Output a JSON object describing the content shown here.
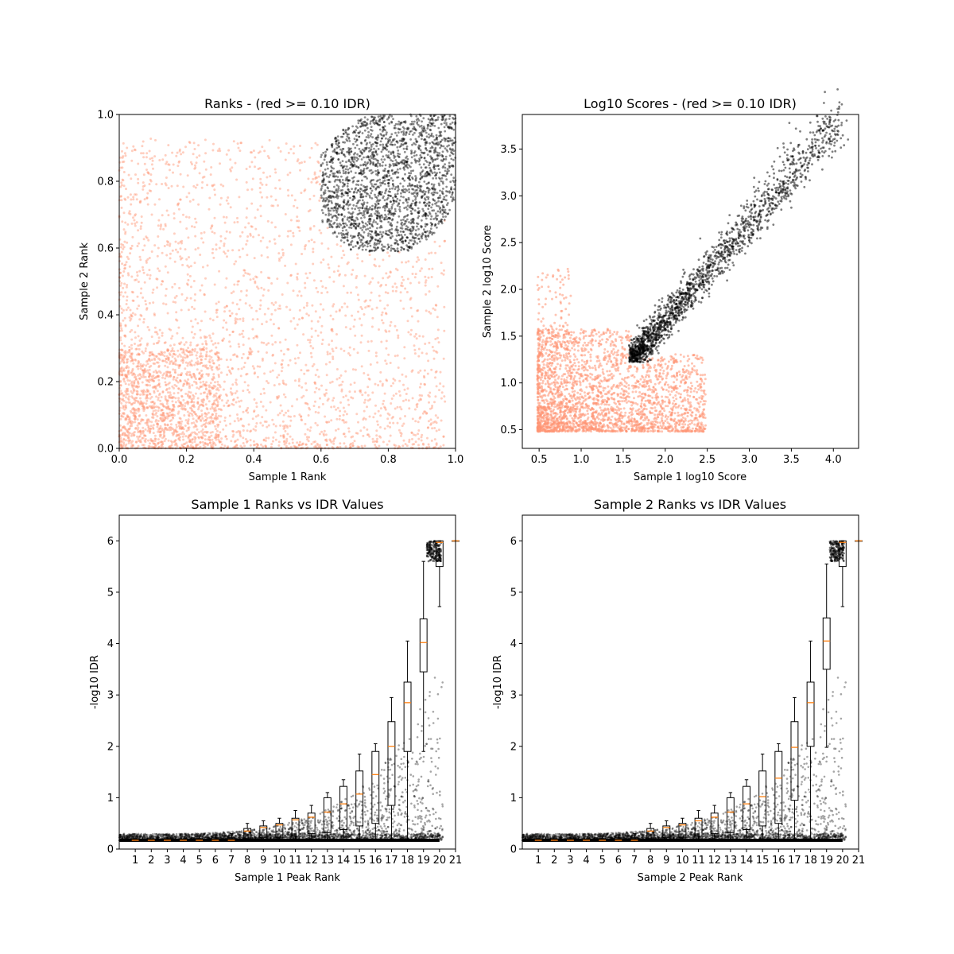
{
  "chart_data": [
    {
      "type": "scatter",
      "title": "Ranks - (red >= 0.10 IDR)",
      "xlabel": "Sample 1 Rank",
      "ylabel": "Sample 2 Rank",
      "xlim": [
        0,
        1
      ],
      "ylim": [
        0,
        1
      ],
      "xticks": [
        "0.0",
        "0.2",
        "0.4",
        "0.6",
        "0.8",
        "1.0"
      ],
      "yticks": [
        "0.0",
        "0.2",
        "0.4",
        "0.6",
        "0.8",
        "1.0"
      ],
      "grid": false,
      "series": [
        {
          "color": "#ff9473",
          "description": "IDR >= 0.10, spread across whole rank space, densest near origin",
          "sample_points": [
            [
              0.05,
              0.05
            ],
            [
              0.1,
              0.15
            ],
            [
              0.2,
              0.1
            ],
            [
              0.3,
              0.3
            ],
            [
              0.45,
              0.2
            ],
            [
              0.5,
              0.5
            ],
            [
              0.6,
              0.4
            ],
            [
              0.7,
              0.2
            ],
            [
              0.8,
              0.5
            ],
            [
              0.15,
              0.7
            ],
            [
              0.35,
              0.8
            ],
            [
              0.9,
              0.3
            ],
            [
              0.55,
              0.65
            ],
            [
              0.25,
              0.45
            ],
            [
              0.05,
              0.85
            ]
          ]
        },
        {
          "color": "#000000",
          "description": "IDR < 0.10, concentrated at high ranks (x 0.6-1.0, y 0.6-1.0)",
          "sample_points": [
            [
              0.62,
              0.75
            ],
            [
              0.7,
              0.65
            ],
            [
              0.75,
              0.85
            ],
            [
              0.8,
              0.72
            ],
            [
              0.85,
              0.9
            ],
            [
              0.9,
              0.8
            ],
            [
              0.95,
              0.95
            ],
            [
              0.98,
              0.99
            ],
            [
              0.68,
              0.88
            ],
            [
              0.88,
              0.62
            ]
          ]
        }
      ]
    },
    {
      "type": "scatter",
      "title": "Log10 Scores - (red >= 0.10 IDR)",
      "xlabel": "Sample 1 log10 Score",
      "ylabel": "Sample 2 log10 Score",
      "xlim": [
        0.3,
        4.3
      ],
      "ylim": [
        0.3,
        3.87
      ],
      "xticks": [
        "0.5",
        "1.0",
        "1.5",
        "2.0",
        "2.5",
        "3.0",
        "3.5",
        "4.0"
      ],
      "yticks": [
        "0.5",
        "1.0",
        "1.5",
        "2.0",
        "2.5",
        "3.0",
        "3.5"
      ],
      "grid": false,
      "series": [
        {
          "color": "#ff9473",
          "description": "IDR >= 0.10, dense block x 0.5-2.5, y 0.5-1.5",
          "sample_points": [
            [
              0.5,
              0.5
            ],
            [
              0.8,
              0.8
            ],
            [
              1.0,
              1.0
            ],
            [
              1.3,
              0.7
            ],
            [
              1.6,
              1.2
            ],
            [
              2.0,
              0.9
            ],
            [
              0.7,
              1.3
            ],
            [
              2.4,
              1.1
            ]
          ]
        },
        {
          "color": "#000000",
          "description": "IDR < 0.10, elongated diagonal cloud from (1.6,1.25) to (4.1,3.7)",
          "sample_points": [
            [
              1.6,
              1.3
            ],
            [
              1.8,
              1.25
            ],
            [
              2.0,
              1.5
            ],
            [
              2.2,
              1.7
            ],
            [
              2.5,
              1.9
            ],
            [
              2.8,
              2.2
            ],
            [
              3.0,
              2.5
            ],
            [
              3.3,
              2.9
            ],
            [
              3.6,
              3.2
            ],
            [
              3.9,
              3.5
            ],
            [
              4.1,
              3.7
            ]
          ]
        }
      ]
    },
    {
      "type": "box",
      "title": "Sample 1 Ranks vs IDR Values",
      "xlabel": "Sample 1 Peak Rank",
      "ylabel": "-log10 IDR",
      "xlim": [
        0,
        21
      ],
      "ylim": [
        0,
        6.5
      ],
      "xticks": [
        "1",
        "2",
        "3",
        "4",
        "5",
        "6",
        "7",
        "8",
        "9",
        "10",
        "11",
        "12",
        "13",
        "14",
        "15",
        "16",
        "17",
        "18",
        "19",
        "20",
        "21"
      ],
      "yticks": [
        "0",
        "1",
        "2",
        "3",
        "4",
        "5",
        "6"
      ],
      "grid": false,
      "box_x": [
        1,
        2,
        3,
        4,
        5,
        6,
        7,
        8,
        9,
        10,
        11,
        12,
        13,
        14,
        15,
        16,
        17,
        18,
        19,
        20,
        21
      ],
      "medians": [
        0.17,
        0.17,
        0.17,
        0.17,
        0.17,
        0.17,
        0.17,
        0.35,
        0.42,
        0.47,
        0.57,
        0.62,
        0.72,
        0.88,
        1.07,
        1.45,
        2.0,
        2.85,
        4.02,
        5.97,
        6.0
      ],
      "q1": [
        0.17,
        0.17,
        0.17,
        0.17,
        0.17,
        0.17,
        0.17,
        0.2,
        0.22,
        0.22,
        0.25,
        0.3,
        0.32,
        0.38,
        0.45,
        0.5,
        0.85,
        1.9,
        3.45,
        5.5,
        6.0
      ],
      "q3": [
        0.17,
        0.17,
        0.17,
        0.17,
        0.2,
        0.22,
        0.22,
        0.4,
        0.45,
        0.5,
        0.6,
        0.7,
        1.0,
        1.22,
        1.52,
        1.9,
        2.48,
        3.25,
        4.48,
        6.0,
        6.0
      ],
      "whisker_low": [
        0.17,
        0.17,
        0.17,
        0.17,
        0.17,
        0.17,
        0.17,
        0.17,
        0.17,
        0.17,
        0.17,
        0.17,
        0.17,
        0.17,
        0.17,
        0.17,
        0.17,
        0.17,
        1.9,
        4.72,
        6.0
      ],
      "whisker_high": [
        0.17,
        0.17,
        0.17,
        0.17,
        0.25,
        0.28,
        0.3,
        0.5,
        0.55,
        0.6,
        0.75,
        0.85,
        1.1,
        1.35,
        1.85,
        2.05,
        2.95,
        4.05,
        5.6,
        6.0,
        6.0
      ],
      "scatter_color": "#000000"
    },
    {
      "type": "box",
      "title": "Sample 2 Ranks vs IDR Values",
      "xlabel": "Sample 2 Peak Rank",
      "ylabel": "-log10 IDR",
      "xlim": [
        0,
        21
      ],
      "ylim": [
        0,
        6.5
      ],
      "xticks": [
        "1",
        "2",
        "3",
        "4",
        "5",
        "6",
        "7",
        "8",
        "9",
        "10",
        "11",
        "12",
        "13",
        "14",
        "15",
        "16",
        "17",
        "18",
        "19",
        "20",
        "21"
      ],
      "yticks": [
        "0",
        "1",
        "2",
        "3",
        "4",
        "5",
        "6"
      ],
      "grid": false,
      "box_x": [
        1,
        2,
        3,
        4,
        5,
        6,
        7,
        8,
        9,
        10,
        11,
        12,
        13,
        14,
        15,
        16,
        17,
        18,
        19,
        20,
        21
      ],
      "medians": [
        0.17,
        0.17,
        0.17,
        0.17,
        0.17,
        0.17,
        0.17,
        0.35,
        0.42,
        0.47,
        0.55,
        0.62,
        0.72,
        0.88,
        1.02,
        1.38,
        1.98,
        2.85,
        4.05,
        5.97,
        6.0
      ],
      "q1": [
        0.17,
        0.17,
        0.17,
        0.17,
        0.17,
        0.17,
        0.17,
        0.2,
        0.22,
        0.22,
        0.25,
        0.3,
        0.32,
        0.38,
        0.45,
        0.5,
        0.95,
        2.0,
        3.5,
        5.5,
        6.0
      ],
      "q3": [
        0.17,
        0.17,
        0.17,
        0.17,
        0.2,
        0.22,
        0.22,
        0.4,
        0.45,
        0.5,
        0.6,
        0.7,
        1.0,
        1.22,
        1.52,
        1.9,
        2.48,
        3.25,
        4.5,
        6.0,
        6.0
      ],
      "whisker_low": [
        0.17,
        0.17,
        0.17,
        0.17,
        0.17,
        0.17,
        0.17,
        0.17,
        0.17,
        0.17,
        0.17,
        0.17,
        0.17,
        0.17,
        0.17,
        0.17,
        0.17,
        0.17,
        1.98,
        4.72,
        6.0
      ],
      "whisker_high": [
        0.17,
        0.17,
        0.17,
        0.17,
        0.25,
        0.28,
        0.3,
        0.5,
        0.55,
        0.6,
        0.75,
        0.85,
        1.1,
        1.35,
        1.85,
        2.05,
        2.95,
        4.05,
        5.55,
        6.0,
        6.0
      ],
      "scatter_color": "#000000"
    }
  ]
}
